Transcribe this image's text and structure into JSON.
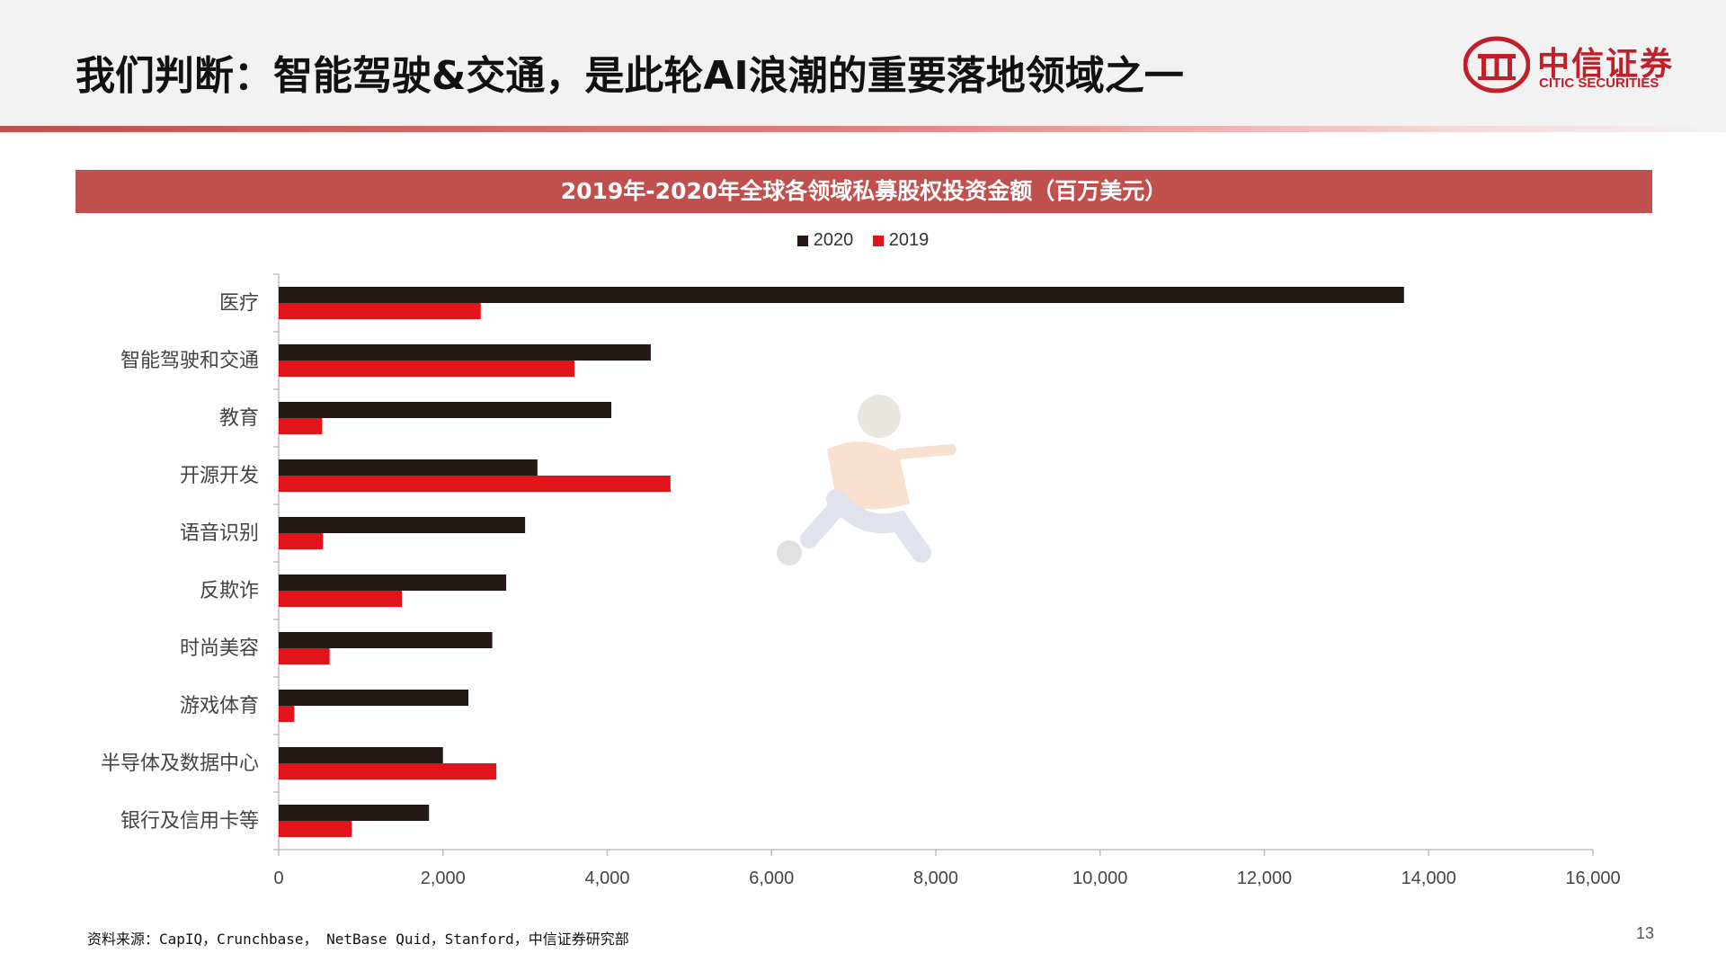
{
  "header": {
    "title": "我们判断：智能驾驶&交通，是此轮AI浪潮的重要落地领域之一",
    "logo_cn": "中信证券",
    "logo_en": "CITIC SECURITIES",
    "brand_color": "#c0202a"
  },
  "chart_data": {
    "type": "bar",
    "orientation": "horizontal",
    "title": "2019年-2020年全球各领域私募股权投资金额（百万美元）",
    "categories": [
      "医疗",
      "智能驾驶和交通",
      "教育",
      "开源开发",
      "语音识别",
      "反欺诈",
      "时尚美容",
      "游戏体育",
      "半导体及数据中心",
      "银行及信用卡等"
    ],
    "series": [
      {
        "name": "2020",
        "color": "#231815",
        "values": [
          13700,
          4530,
          4050,
          3150,
          3000,
          2770,
          2600,
          2310,
          2000,
          1830
        ]
      },
      {
        "name": "2019",
        "color": "#e3131b",
        "values": [
          2460,
          3600,
          530,
          4770,
          540,
          1500,
          620,
          190,
          2650,
          890
        ]
      }
    ],
    "xlim": [
      0,
      16000
    ],
    "xticks": [
      0,
      2000,
      4000,
      6000,
      8000,
      10000,
      12000,
      14000,
      16000
    ],
    "xtick_labels": [
      "0",
      "2,000",
      "4,000",
      "6,000",
      "8,000",
      "10,000",
      "12,000",
      "14,000",
      "16,000"
    ],
    "grid": false,
    "legend_position": "top-center"
  },
  "footer": {
    "source": "资料来源：CapIQ，Crunchbase， NetBase Quid，Stanford，中信证券研究部",
    "page_number": "13"
  }
}
